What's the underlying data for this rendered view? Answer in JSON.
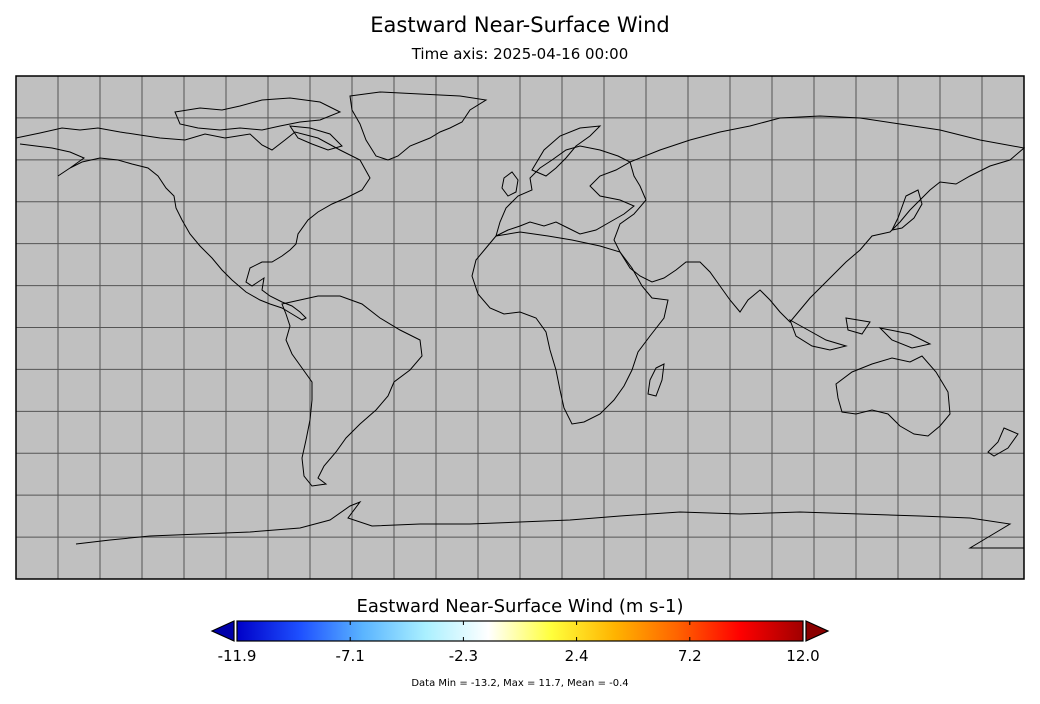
{
  "plot": {
    "title": "Eastward Near-Surface Wind",
    "subtitle": "Time axis: 2025-04-16 00:00",
    "projection": "equirectangular",
    "lon_range": [
      -180,
      180
    ],
    "lat_range": [
      -90,
      90
    ],
    "grid_lon_step": 15,
    "grid_lat_step": 15,
    "ocean_fill": "#c0c0c0",
    "gridline_color": "#555555",
    "coastline_color": "#000000"
  },
  "colorbar": {
    "title": "Eastward Near-Surface Wind (m s-1)",
    "ticks": [
      "-11.9",
      "-7.1",
      "-2.3",
      "2.4",
      "7.2",
      "12.0"
    ],
    "extend": "both",
    "colors": [
      "#0000c8",
      "#1e50ff",
      "#5ab4ff",
      "#aaf0ff",
      "#ffffff",
      "#ffff3c",
      "#ffb400",
      "#ff6400",
      "#ff0000",
      "#a00000"
    ],
    "under_color": "#0000aa",
    "over_color": "#8b0000"
  },
  "stats": {
    "text": "Data Min = -13.2, Max = 11.7, Mean = -0.4"
  }
}
